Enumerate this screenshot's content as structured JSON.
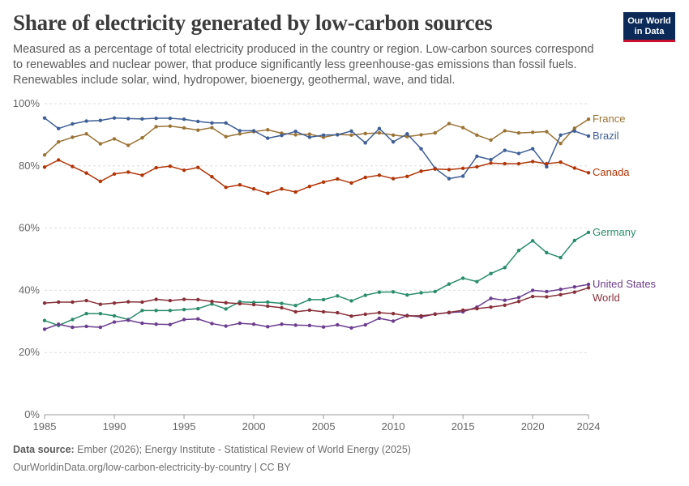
{
  "header": {
    "title": "Share of electricity generated by low-carbon sources",
    "subtitle": "Measured as a percentage of total electricity produced in the country or region. Low-carbon sources correspond to renewables and nuclear power, that produce significantly less greenhouse-gas emissions than fossil fuels. Renewables include solar, wind, hydropower, bioenergy, geothermal, wave, and tidal."
  },
  "logo": {
    "line1": "Our World",
    "line2": "in Data",
    "bg_color": "#0b2a57",
    "accent_color": "#c8102e"
  },
  "footer": {
    "source_label": "Data source:",
    "source_text": "Ember (2026); Energy Institute - Statistical Review of World Energy (2025)",
    "url_license": "OurWorldinData.org/low-carbon-electricity-by-country | CC BY"
  },
  "chart_data": {
    "type": "line",
    "x": [
      1985,
      1986,
      1987,
      1988,
      1989,
      1990,
      1991,
      1992,
      1993,
      1994,
      1995,
      1996,
      1997,
      1998,
      1999,
      2000,
      2001,
      2002,
      2003,
      2004,
      2005,
      2006,
      2007,
      2008,
      2009,
      2010,
      2011,
      2012,
      2013,
      2014,
      2015,
      2016,
      2017,
      2018,
      2019,
      2020,
      2021,
      2022,
      2023,
      2024
    ],
    "xlim": [
      1985,
      2024
    ],
    "ylim": [
      0,
      100
    ],
    "x_ticks": [
      1985,
      1990,
      1995,
      2000,
      2005,
      2010,
      2015,
      2020,
      2024
    ],
    "y_ticks": [
      0,
      20,
      40,
      60,
      80,
      100
    ],
    "y_tick_suffix": "%",
    "grid": "horizontal dashed",
    "legend": "right, labels at line ends",
    "series": [
      {
        "name": "France",
        "color": "#9a7335",
        "values": [
          83.5,
          87.7,
          89.2,
          90.3,
          87.1,
          88.7,
          86.6,
          89.0,
          92.6,
          92.8,
          92.2,
          91.5,
          92.3,
          89.4,
          90.3,
          91.0,
          91.6,
          90.5,
          90.0,
          90.2,
          89.2,
          90.1,
          89.9,
          90.4,
          90.6,
          89.9,
          89.4,
          90.0,
          90.6,
          93.6,
          92.3,
          89.9,
          88.3,
          91.3,
          90.6,
          90.8,
          91.0,
          87.2,
          92.1,
          95.0
        ]
      },
      {
        "name": "Brazil",
        "color": "#3e5f96",
        "values": [
          95.4,
          92.0,
          93.5,
          94.4,
          94.6,
          95.4,
          95.2,
          95.1,
          95.3,
          95.3,
          95.0,
          94.3,
          93.8,
          93.8,
          91.3,
          91.3,
          88.9,
          89.8,
          91.1,
          89.2,
          89.9,
          90.0,
          91.2,
          87.4,
          92.0,
          87.7,
          90.3,
          85.5,
          79.2,
          75.9,
          76.7,
          83.1,
          82.0,
          85.0,
          84.0,
          85.5,
          79.7,
          89.9,
          91.2,
          89.6
        ]
      },
      {
        "name": "Canada",
        "color": "#b13507",
        "values": [
          79.6,
          81.9,
          79.8,
          77.7,
          75.0,
          77.4,
          78.0,
          77.0,
          79.4,
          79.9,
          78.6,
          79.5,
          76.5,
          73.1,
          73.9,
          72.6,
          71.2,
          72.6,
          71.6,
          73.4,
          74.8,
          75.8,
          74.5,
          76.3,
          77.0,
          75.9,
          76.6,
          78.3,
          79.0,
          78.8,
          79.2,
          79.7,
          80.9,
          80.7,
          80.7,
          81.4,
          80.7,
          81.2,
          79.3,
          77.8
        ]
      },
      {
        "name": "Germany",
        "color": "#2a8c6c",
        "values": [
          30.3,
          28.7,
          30.6,
          32.5,
          32.5,
          31.8,
          30.6,
          33.5,
          33.5,
          33.5,
          33.8,
          34.1,
          35.6,
          34.0,
          36.3,
          36.1,
          36.2,
          35.8,
          35.1,
          37.0,
          37.0,
          38.2,
          36.6,
          38.4,
          39.4,
          39.5,
          38.5,
          39.2,
          39.6,
          42.0,
          43.9,
          42.8,
          45.4,
          47.3,
          52.8,
          55.9,
          52.1,
          50.5,
          56.0,
          58.6
        ]
      },
      {
        "name": "United States",
        "color": "#6b3d8e",
        "values": [
          27.5,
          29.1,
          28.1,
          28.4,
          28.1,
          29.8,
          30.4,
          29.4,
          29.1,
          29.0,
          30.6,
          30.8,
          29.3,
          28.5,
          29.4,
          29.1,
          28.3,
          29.1,
          28.8,
          28.7,
          28.2,
          28.9,
          27.9,
          28.9,
          31.0,
          30.1,
          31.9,
          31.4,
          32.4,
          32.8,
          33.1,
          34.6,
          37.4,
          36.8,
          37.7,
          40.0,
          39.6,
          40.3,
          41.1,
          41.9
        ]
      },
      {
        "name": "World",
        "color": "#883039",
        "values": [
          35.9,
          36.2,
          36.2,
          36.7,
          35.5,
          35.9,
          36.3,
          36.2,
          37.1,
          36.7,
          37.1,
          37.0,
          36.4,
          36.0,
          35.7,
          35.4,
          34.9,
          34.4,
          33.1,
          33.6,
          33.1,
          32.8,
          31.7,
          32.3,
          32.8,
          32.5,
          31.8,
          31.8,
          32.3,
          32.9,
          33.6,
          34.1,
          34.6,
          35.2,
          36.4,
          38.0,
          37.9,
          38.6,
          39.4,
          40.8
        ]
      }
    ]
  }
}
